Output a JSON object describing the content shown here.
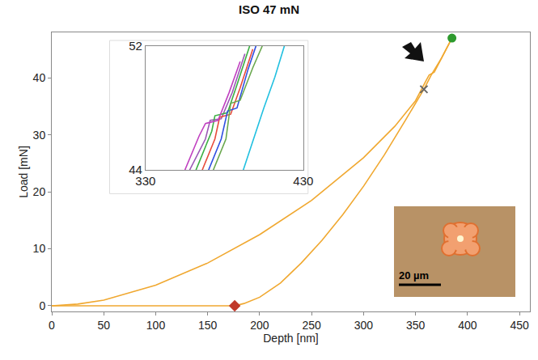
{
  "chart_data": [
    {
      "type": "line",
      "title": "ISO 47 mN",
      "x_label": "Depth [nm]",
      "y_label": "Load [mN]",
      "xlim": [
        0,
        460
      ],
      "ylim": [
        -1,
        48
      ],
      "xticks": [
        0,
        50,
        100,
        150,
        200,
        250,
        300,
        350,
        400,
        450
      ],
      "yticks": [
        0,
        10,
        20,
        30,
        40
      ],
      "grid": false,
      "annotations": [
        "20 µm"
      ],
      "series": [
        {
          "type": "line",
          "color": "#f0a830",
          "x": [
            0,
            25,
            50,
            100,
            150,
            200,
            250,
            300,
            330,
            350,
            360,
            363,
            368,
            375,
            385
          ],
          "values": [
            0,
            0.3,
            1,
            3.6,
            7.5,
            12.5,
            18.5,
            26,
            31.5,
            36,
            39.5,
            40.5,
            41,
            43.5,
            47
          ]
        },
        {
          "type": "line",
          "color": "#f0a830",
          "x": [
            385,
            375,
            365,
            358,
            340,
            320,
            300,
            280,
            260,
            240,
            220,
            200,
            185,
            176,
            100,
            0
          ],
          "values": [
            47,
            43.5,
            40.5,
            38,
            32.5,
            26.5,
            21,
            16,
            11.5,
            7.5,
            4,
            1.5,
            0.4,
            0,
            0,
            0
          ]
        },
        {
          "type": "scatter",
          "marker": "circle",
          "color": "#2e9a2e",
          "x": [
            385
          ],
          "values": [
            47
          ]
        },
        {
          "type": "scatter",
          "marker": "diamond",
          "color": "#c0392b",
          "x": [
            176
          ],
          "values": [
            0
          ]
        },
        {
          "type": "scatter",
          "marker": "x-thin",
          "color": "#666666",
          "x": [
            358
          ],
          "values": [
            38
          ]
        }
      ]
    },
    {
      "type": "line",
      "xlim": [
        330,
        430
      ],
      "ylim": [
        44,
        52
      ],
      "xticks": [
        330,
        430
      ],
      "yticks": [
        44,
        52
      ],
      "grid": false,
      "series": [
        {
          "color": "#9b59b6",
          "x": [
            358,
            368,
            371,
            378,
            385,
            393
          ],
          "values": [
            44,
            46,
            47.2,
            47.3,
            49,
            51.5
          ]
        },
        {
          "color": "#3cb043",
          "x": [
            362,
            372,
            374,
            382,
            388,
            396
          ],
          "values": [
            44,
            46.5,
            47.5,
            47.7,
            49.5,
            52
          ]
        },
        {
          "color": "#e74c3c",
          "x": [
            366,
            374,
            377,
            384,
            390,
            398
          ],
          "values": [
            44,
            46,
            47.4,
            47.6,
            49.3,
            51.8
          ]
        },
        {
          "color": "#3050e0",
          "x": [
            370,
            378,
            382,
            388,
            395,
            400
          ],
          "values": [
            44,
            46,
            47.8,
            48,
            50.5,
            52
          ]
        },
        {
          "color": "#c040c0",
          "x": [
            355,
            364,
            368,
            376,
            383,
            390
          ],
          "values": [
            44,
            46.2,
            47,
            47.2,
            49,
            51
          ]
        },
        {
          "color": "#6aa84f",
          "x": [
            373,
            381,
            384,
            390,
            398,
            404
          ],
          "values": [
            44,
            46,
            48.3,
            48.5,
            50.6,
            52
          ]
        },
        {
          "color": "#22c0e0",
          "x": [
            392,
            400,
            405,
            412,
            418
          ],
          "values": [
            44,
            46.5,
            48,
            50,
            52
          ]
        }
      ]
    }
  ]
}
